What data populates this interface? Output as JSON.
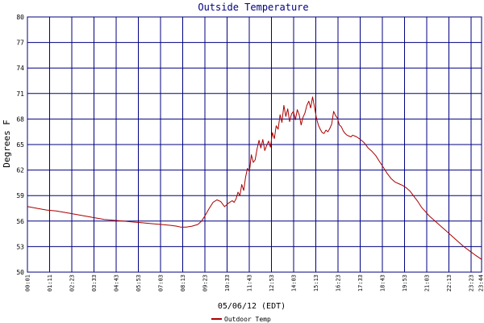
{
  "chart_data": {
    "type": "line",
    "title": "Outside Temperature",
    "xlabel": "05/06/12 (EDT)",
    "ylabel": "Degrees F",
    "ylim": [
      50,
      80
    ],
    "y_ticks": [
      "50",
      "53",
      "56",
      "59",
      "62",
      "65",
      "68",
      "71",
      "74",
      "77",
      "80"
    ],
    "x_ticks": [
      "00:01",
      "01:11",
      "02:23",
      "03:33",
      "04:43",
      "05:53",
      "07:03",
      "08:13",
      "09:23",
      "10:33",
      "11:43",
      "12:53",
      "14:03",
      "15:13",
      "16:23",
      "17:33",
      "18:43",
      "19:53",
      "21:03",
      "22:13",
      "23:23",
      "23:44"
    ],
    "grid": true,
    "legend_position": "bottom-center",
    "colors": {
      "series": "#aa0000",
      "grid": "#000080",
      "title": "#000080",
      "background": "#ffffff"
    },
    "series": [
      {
        "name": "Outdoor Temp",
        "x": [
          0.02,
          0.5,
          1.0,
          1.5,
          2.0,
          2.5,
          3.0,
          3.5,
          4.0,
          4.5,
          5.0,
          5.5,
          6.0,
          6.5,
          7.0,
          7.5,
          7.8,
          8.0,
          8.3,
          8.6,
          8.9,
          9.1,
          9.3,
          9.5,
          9.7,
          9.9,
          10.1,
          10.3,
          10.5,
          10.7,
          10.8,
          10.9,
          11.0,
          11.1,
          11.2,
          11.3,
          11.4,
          11.5,
          11.6,
          11.7,
          11.8,
          11.9,
          12.0,
          12.1,
          12.2,
          12.3,
          12.4,
          12.5,
          12.6,
          12.7,
          12.8,
          12.9,
          13.0,
          13.1,
          13.2,
          13.3,
          13.4,
          13.5,
          13.6,
          13.7,
          13.8,
          13.9,
          14.0,
          14.1,
          14.2,
          14.3,
          14.4,
          14.5,
          14.6,
          14.7,
          14.8,
          14.9,
          15.0,
          15.1,
          15.2,
          15.3,
          15.4,
          15.5,
          15.6,
          15.7,
          15.8,
          15.9,
          16.0,
          16.1,
          16.2,
          16.3,
          16.4,
          16.5,
          16.6,
          16.7,
          16.8,
          16.9,
          17.0,
          17.2,
          17.4,
          17.6,
          17.8,
          18.0,
          18.2,
          18.4,
          18.6,
          18.8,
          19.0,
          19.2,
          19.4,
          19.6,
          19.8,
          20.0,
          20.2,
          20.4,
          20.6,
          20.8,
          21.0,
          21.3,
          21.6,
          21.9,
          22.2,
          22.5,
          22.8,
          23.1,
          23.4,
          23.73
        ],
        "y": [
          57.7,
          57.5,
          57.3,
          57.2,
          57.0,
          56.8,
          56.6,
          56.4,
          56.2,
          56.1,
          56.0,
          55.9,
          55.8,
          55.7,
          55.6,
          55.5,
          55.4,
          55.3,
          55.3,
          55.4,
          55.6,
          56.0,
          56.7,
          57.5,
          58.2,
          58.5,
          58.3,
          57.7,
          58.1,
          58.4,
          58.2,
          58.6,
          59.4,
          59.0,
          60.3,
          59.6,
          61.2,
          62.2,
          61.8,
          63.8,
          62.9,
          63.2,
          64.5,
          65.5,
          64.6,
          65.6,
          64.3,
          64.9,
          65.4,
          64.7,
          66.4,
          65.7,
          67.2,
          66.8,
          68.5,
          67.6,
          69.6,
          68.3,
          69.2,
          67.7,
          68.6,
          68.9,
          67.9,
          69.1,
          68.5,
          67.3,
          68.2,
          68.7,
          69.6,
          70.1,
          69.3,
          70.6,
          69.4,
          68.1,
          67.3,
          66.8,
          66.4,
          66.3,
          66.7,
          66.5,
          66.9,
          67.4,
          68.9,
          68.4,
          68.1,
          67.3,
          67.1,
          66.6,
          66.3,
          66.1,
          66.0,
          65.9,
          66.1,
          65.9,
          65.6,
          65.2,
          64.6,
          64.2,
          63.7,
          63.0,
          62.3,
          61.6,
          61.0,
          60.6,
          60.4,
          60.2,
          59.9,
          59.5,
          58.9,
          58.3,
          57.6,
          57.1,
          56.6,
          56.0,
          55.4,
          54.8,
          54.2,
          53.6,
          53.0,
          52.5,
          52.0,
          51.5
        ]
      }
    ]
  }
}
